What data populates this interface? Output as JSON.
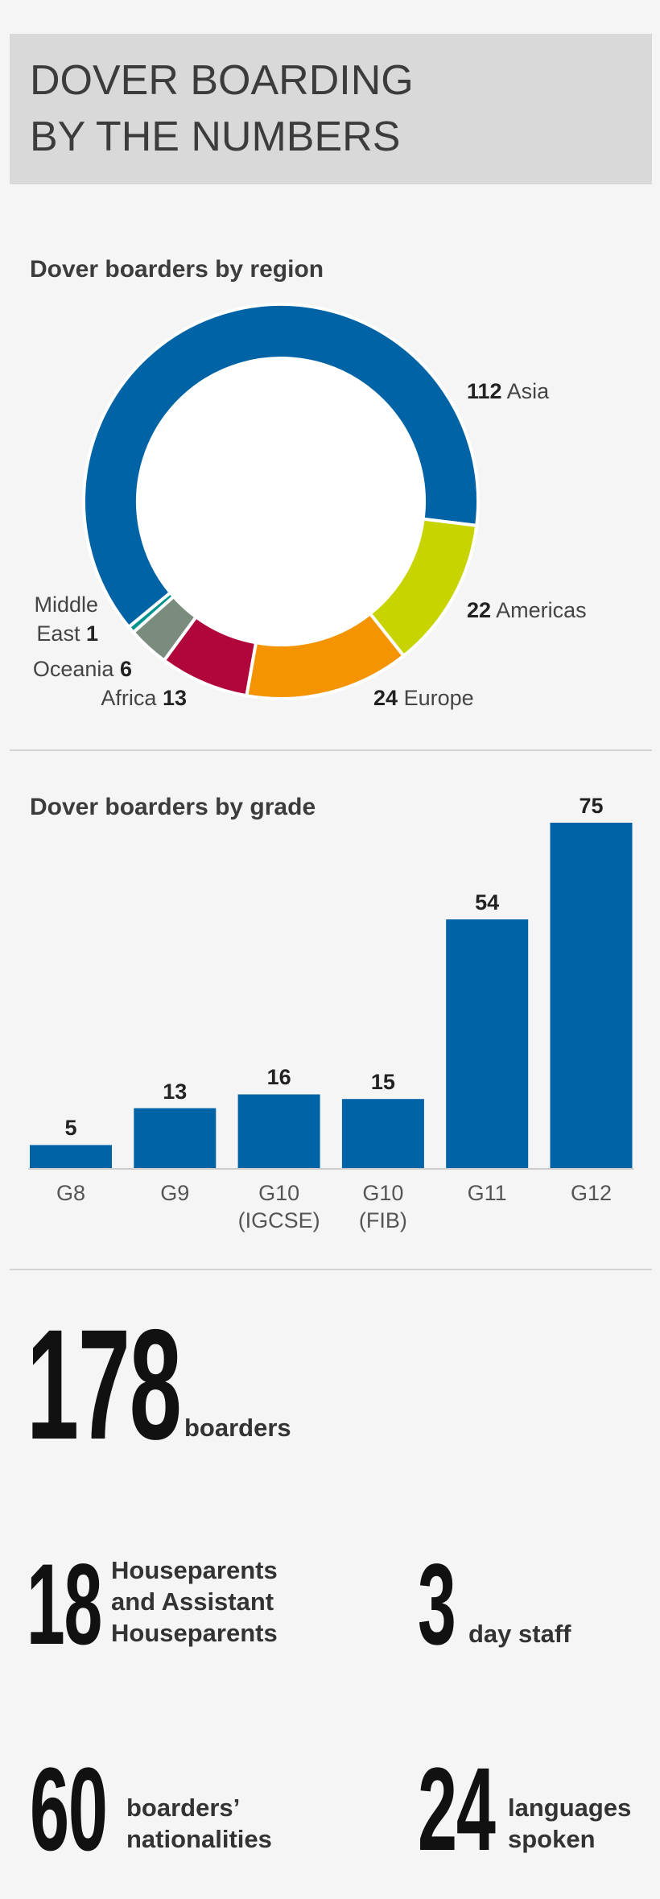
{
  "header": {
    "title": [
      "DOVER BOARDING",
      "BY THE NUMBERS"
    ]
  },
  "region_chart": {
    "type": "donut",
    "title": "Dover boarders by region",
    "categories": [
      "Asia",
      "Americas",
      "Europe",
      "Africa",
      "Oceania",
      "Middle East"
    ],
    "values": [
      112,
      22,
      24,
      13,
      6,
      1
    ],
    "colors": [
      "#0063a6",
      "#c8d400",
      "#f39400",
      "#b0063a",
      "#7a8c7e",
      "#00928f"
    ]
  },
  "grade_chart": {
    "type": "bar",
    "title": "Dover boarders by grade",
    "categories": [
      "G8",
      "G9",
      "G10 (IGCSE)",
      "G10 (FIB)",
      "G11",
      "G12"
    ],
    "values": [
      5,
      13,
      16,
      15,
      54,
      75
    ],
    "color": "#0063a6"
  },
  "stats": [
    {
      "value": 178,
      "label": "boarders"
    },
    {
      "value": 18,
      "label": "Houseparents and Assistant Houseparents"
    },
    {
      "value": 3,
      "label": "day staff"
    },
    {
      "value": 60,
      "label": "boarders’ nationalities"
    },
    {
      "value": 24,
      "label": "languages spoken"
    }
  ]
}
